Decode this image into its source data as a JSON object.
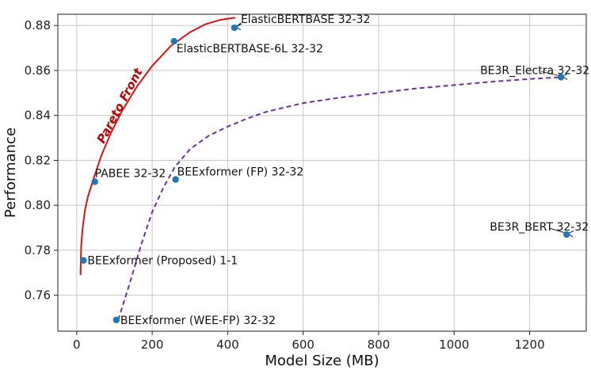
{
  "chart_data": {
    "type": "scatter",
    "xlabel": "Model Size (MB)",
    "ylabel": "Performance",
    "xlim": [
      -50,
      1350
    ],
    "ylim": [
      0.744,
      0.885
    ],
    "xticks": [
      0,
      200,
      400,
      600,
      800,
      1000,
      1200
    ],
    "yticks": [
      0.76,
      0.78,
      0.8,
      0.82,
      0.84,
      0.86,
      0.88
    ],
    "grid": true,
    "point_color": "#1f77b4",
    "points": [
      {
        "name": "BEExformer (Proposed) 1-1",
        "x": 18,
        "y": 0.7755
      },
      {
        "name": "PABEE 32-32",
        "x": 48,
        "y": 0.8105
      },
      {
        "name": "ElasticBERTBASE-6L 32-32",
        "x": 258,
        "y": 0.873
      },
      {
        "name": "ElasticBERTBASE 32-32",
        "x": 418,
        "y": 0.879
      },
      {
        "name": "BEExformer (FP) 32-32",
        "x": 262,
        "y": 0.8115
      },
      {
        "name": "BEExformer (WEE-FP) 32-32",
        "x": 105,
        "y": 0.749
      },
      {
        "name": "BE3R_Electra 32-32",
        "x": 1283,
        "y": 0.857
      },
      {
        "name": "BE3R_BERT 32-32",
        "x": 1298,
        "y": 0.787
      }
    ],
    "pareto_front": {
      "label": "Pareto Front",
      "color": "#e01010",
      "x": [
        10,
        12,
        16,
        22,
        30,
        45,
        65,
        90,
        120,
        160,
        200,
        250,
        300,
        340,
        380,
        420
      ],
      "y": [
        0.769,
        0.782,
        0.79,
        0.798,
        0.804,
        0.812,
        0.822,
        0.832,
        0.842,
        0.853,
        0.862,
        0.871,
        0.877,
        0.8805,
        0.8825,
        0.8835
      ]
    },
    "dashed_curve": {
      "color": "#7030a0",
      "x": [
        110,
        140,
        170,
        200,
        230,
        260,
        300,
        350,
        400,
        450,
        500,
        600,
        700,
        800,
        900,
        1000,
        1100,
        1200,
        1283
      ],
      "y": [
        0.749,
        0.765,
        0.782,
        0.797,
        0.808,
        0.817,
        0.825,
        0.831,
        0.835,
        0.8385,
        0.8415,
        0.8455,
        0.848,
        0.85,
        0.852,
        0.8535,
        0.855,
        0.8562,
        0.857
      ]
    }
  }
}
